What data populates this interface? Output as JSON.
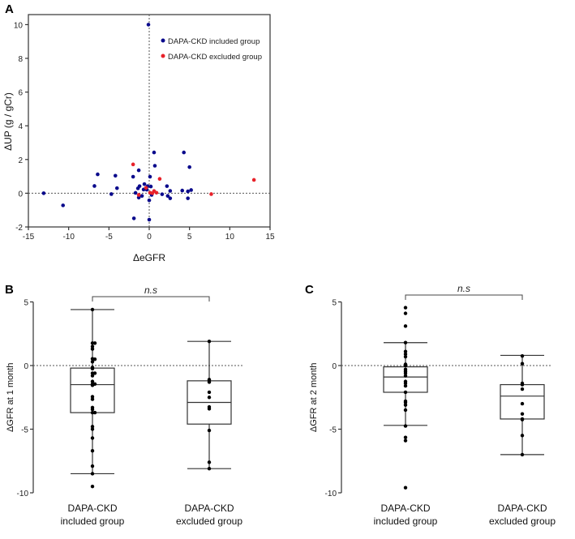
{
  "chart_data": [
    {
      "type": "scatter",
      "panel": "A",
      "xlabel": "ΔeGFR",
      "ylabel": "ΔUP (g / gCr)",
      "xlim": [
        -15,
        15
      ],
      "ylim": [
        -2,
        10
      ],
      "xticks": [
        -15,
        -10,
        -5,
        0,
        5,
        10,
        15
      ],
      "yticks": [
        -2,
        0,
        2,
        4,
        6,
        8,
        10
      ],
      "legend_position": "top-right",
      "series": [
        {
          "name": "DAPA-CKD included group",
          "color": "#0a0a8c",
          "points": [
            [
              -0.1,
              10
            ],
            [
              0.6,
              2.42
            ],
            [
              4.3,
              2.42
            ],
            [
              0.7,
              1.63
            ],
            [
              5.0,
              1.55
            ],
            [
              -1.3,
              1.36
            ],
            [
              -6.4,
              1.12
            ],
            [
              -4.2,
              1.04
            ],
            [
              -2.0,
              0.98
            ],
            [
              0.1,
              0.98
            ],
            [
              -6.8,
              0.43
            ],
            [
              -4.0,
              0.3
            ],
            [
              -0.6,
              0.54
            ],
            [
              -0.2,
              0.42
            ],
            [
              0.2,
              0.4
            ],
            [
              2.2,
              0.42
            ],
            [
              -1.2,
              0.42
            ],
            [
              -1.4,
              0.29
            ],
            [
              -0.7,
              0.22
            ],
            [
              -0.3,
              0.21
            ],
            [
              2.6,
              0.14
            ],
            [
              4.1,
              0.16
            ],
            [
              4.8,
              0.11
            ],
            [
              5.2,
              0.19
            ],
            [
              -13.1,
              0
            ],
            [
              -4.7,
              -0.05
            ],
            [
              -1.7,
              0.02
            ],
            [
              0.3,
              -0.1
            ],
            [
              1.6,
              -0.06
            ],
            [
              -0.9,
              -0.16
            ],
            [
              -1.3,
              -0.26
            ],
            [
              2.3,
              -0.16
            ],
            [
              2.6,
              -0.3
            ],
            [
              4.8,
              -0.3
            ],
            [
              0.0,
              -0.42
            ],
            [
              -10.7,
              -0.72
            ],
            [
              -1.9,
              -1.49
            ],
            [
              0.0,
              -1.57
            ]
          ]
        },
        {
          "name": "DAPA-CKD excluded group",
          "color": "#e8222a",
          "points": [
            [
              -2.0,
              1.71
            ],
            [
              1.3,
              0.85
            ],
            [
              13.0,
              0.79
            ],
            [
              -0.4,
              0.32
            ],
            [
              -1.3,
              -0.1
            ],
            [
              0.1,
              0.03
            ],
            [
              0.6,
              0.13
            ],
            [
              0.9,
              0.03
            ],
            [
              0.4,
              0.0
            ],
            [
              7.7,
              -0.05
            ]
          ]
        }
      ]
    },
    {
      "type": "box",
      "panel": "B",
      "ylabel": "ΔGFR at 1 month",
      "ylim": [
        -10,
        5
      ],
      "yticks": [
        -10,
        -5,
        0,
        5
      ],
      "annotation": "n.s",
      "groups": [
        {
          "label_line1": "DAPA-CKD",
          "label_line2": "included group",
          "whisker_high": 4.4,
          "q3": -0.2,
          "median": -1.5,
          "q1": -3.7,
          "whisker_low": -8.5,
          "points": [
            4.4,
            1.76,
            1.76,
            1.5,
            1.3,
            0.53,
            0.5,
            0.3,
            -0.15,
            -0.25,
            -0.6,
            -0.6,
            -0.8,
            -1.25,
            -1.45,
            -1.45,
            -1.55,
            -2.45,
            -2.65,
            -3.3,
            -3.45,
            -3.7,
            -3.7,
            -4.8,
            -5.0,
            -5.7,
            -6.7,
            -7.9,
            -8.5,
            -9.5
          ]
        },
        {
          "label_line1": "DAPA-CKD",
          "label_line2": "excluded group",
          "whisker_high": 1.9,
          "q3": -1.2,
          "median": -2.9,
          "q1": -4.6,
          "whisker_low": -8.1,
          "points": [
            1.9,
            -1.1,
            -1.2,
            -1.3,
            -2.1,
            -2.5,
            -3.25,
            -3.4,
            -5.1,
            -7.6,
            -8.1
          ]
        }
      ]
    },
    {
      "type": "box",
      "panel": "C",
      "ylabel": "ΔGFR at 2 month",
      "ylim": [
        -10,
        5
      ],
      "yticks": [
        -10,
        -5,
        0,
        5
      ],
      "annotation": "n.s",
      "groups": [
        {
          "label_line1": "DAPA-CKD",
          "label_line2": "included group",
          "whisker_high": 1.8,
          "q3": -0.1,
          "median": -0.9,
          "q1": -2.1,
          "whisker_low": -4.7,
          "points": [
            4.55,
            4.1,
            3.1,
            1.8,
            1.1,
            0.9,
            0.7,
            0.1,
            0.05,
            0,
            -0.3,
            -0.45,
            -0.6,
            -0.8,
            -1.25,
            -1.4,
            -1.6,
            -2.1,
            -2.8,
            -2.9,
            -3.1,
            -3.5,
            -4.75,
            -5.65,
            -5.9,
            -9.6
          ]
        },
        {
          "label_line1": "DAPA-CKD",
          "label_line2": "excluded group",
          "whisker_high": 0.8,
          "q3": -1.5,
          "median": -2.4,
          "q1": -4.2,
          "whisker_low": -7.0,
          "points": [
            0.75,
            0.15,
            -1.4,
            -1.5,
            -1.85,
            -3.0,
            -3.8,
            -4.2,
            -4.25,
            -5.5,
            -7.0
          ]
        }
      ]
    }
  ]
}
